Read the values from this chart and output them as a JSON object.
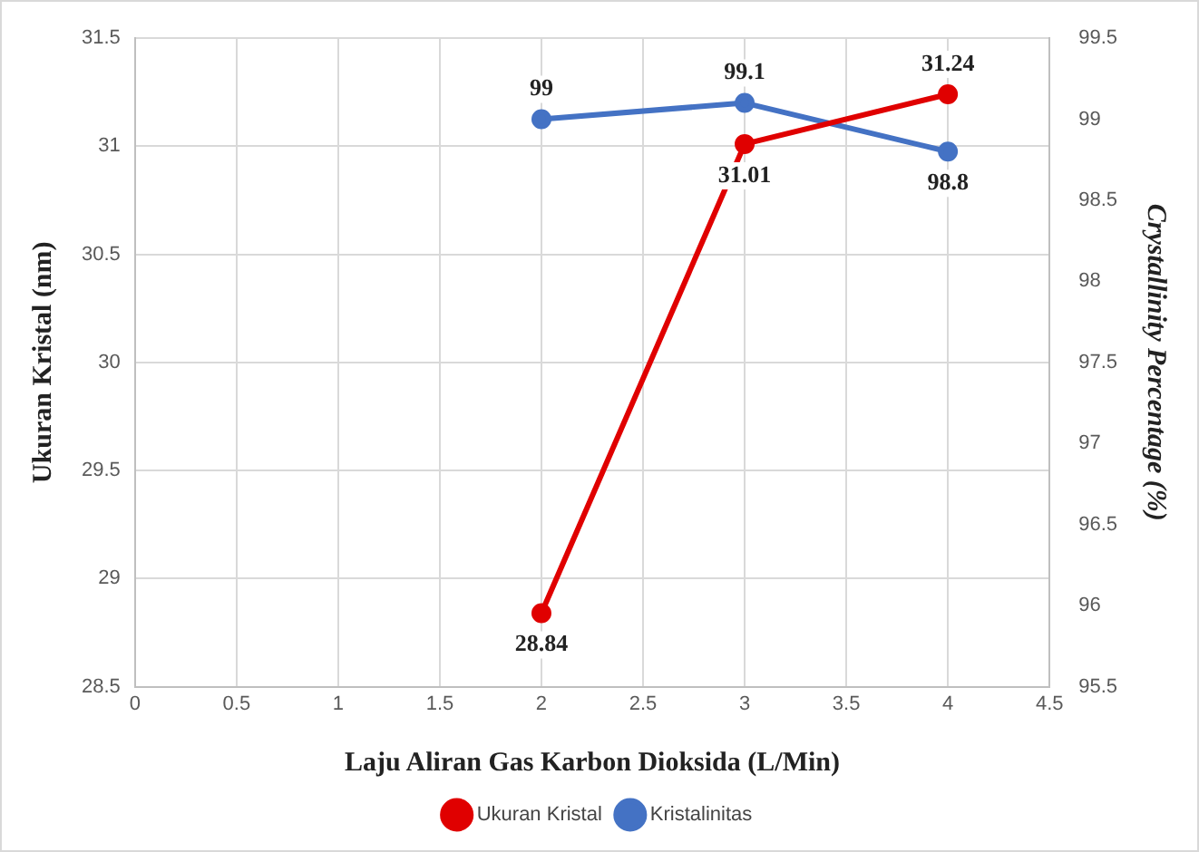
{
  "chart_data": {
    "type": "line",
    "xlabel": "Laju Aliran Gas Karbon Dioksida (L/Min)",
    "ylabel": "Ukuran Kristal (nm)",
    "y2label": "Crystallinity Percentage (%)",
    "x": [
      2,
      3,
      4
    ],
    "series": [
      {
        "name": "Ukuran Kristal",
        "color": "#e00000",
        "values": [
          28.84,
          31.01,
          31.24
        ]
      },
      {
        "name": "Kristalinitas",
        "color": "#4472c4",
        "values": [
          99,
          99.1,
          98.8
        ],
        "axis": "y2"
      }
    ],
    "xlim": [
      0,
      4.5
    ],
    "xticks": [
      0,
      0.5,
      1,
      1.5,
      2,
      2.5,
      3,
      3.5,
      4,
      4.5
    ],
    "ylim": [
      28.5,
      31.5
    ],
    "yticks": [
      28.5,
      29,
      29.5,
      30,
      30.5,
      31,
      31.5
    ],
    "y2lim": [
      95.5,
      99.5
    ],
    "y2ticks": [
      95.5,
      96,
      96.5,
      97,
      97.5,
      98,
      98.5,
      99,
      99.5
    ],
    "grid": true,
    "legend": "bottom",
    "marker": "circle",
    "line_style": "solid",
    "data_labels": true
  }
}
